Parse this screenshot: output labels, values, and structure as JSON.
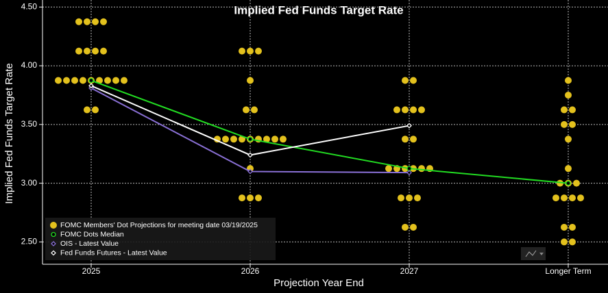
{
  "chart_data": {
    "type": "scatter",
    "title": "Implied Fed Funds Target Rate",
    "ylabel": "Implied Fed Funds Target Rate",
    "xlabel": "Projection Year End",
    "categories": [
      "2025",
      "2026",
      "2027",
      "Longer Term"
    ],
    "ylim": [
      2.31,
      4.56
    ],
    "yticks": [
      {
        "value": 2.5,
        "label": "2.50"
      },
      {
        "value": 3.0,
        "label": "3.00"
      },
      {
        "value": 3.5,
        "label": "3.50"
      },
      {
        "value": 4.0,
        "label": "4.00"
      },
      {
        "value": 4.5,
        "label": "4.50"
      }
    ],
    "grid": true,
    "legend": "lower left",
    "series": [
      {
        "name": "FOMC Members' Dot Projections for meeting date 03/19/2025",
        "color": "#e3c11d",
        "kind": "dots",
        "values": [
          [
            4.375,
            4.375,
            4.375,
            4.375,
            4.125,
            4.125,
            4.125,
            4.125,
            3.875,
            3.875,
            3.875,
            3.875,
            3.875,
            3.875,
            3.875,
            3.875,
            3.875,
            3.625,
            3.625
          ],
          [
            4.125,
            4.125,
            4.125,
            3.875,
            3.625,
            3.625,
            3.375,
            3.375,
            3.375,
            3.375,
            3.375,
            3.375,
            3.375,
            3.375,
            3.375,
            3.125,
            2.875,
            2.875,
            2.875
          ],
          [
            3.875,
            3.875,
            3.625,
            3.625,
            3.625,
            3.625,
            3.375,
            3.375,
            3.125,
            3.125,
            3.125,
            3.125,
            3.125,
            3.125,
            2.875,
            2.875,
            2.875,
            2.625,
            2.625
          ],
          [
            3.875,
            3.75,
            3.625,
            3.625,
            3.5,
            3.5,
            3.375,
            3.125,
            3.0,
            3.0,
            3.0,
            2.875,
            2.875,
            2.875,
            2.875,
            2.625,
            2.625,
            2.5,
            2.5
          ]
        ]
      },
      {
        "name": "FOMC Dots Median",
        "color": "#22dd22",
        "kind": "line",
        "marker": "circle",
        "values": [
          3.875,
          3.375,
          3.125,
          3.0
        ]
      },
      {
        "name": "OIS - Latest Value",
        "color": "#8a70d6",
        "kind": "line",
        "marker": "diamond",
        "values": [
          3.81,
          3.1,
          3.09,
          null
        ]
      },
      {
        "name": "Fed Funds Futures - Latest Value",
        "color": "#ffffff",
        "kind": "line",
        "marker": "diamond",
        "values": [
          3.83,
          3.24,
          3.49,
          null
        ]
      }
    ]
  }
}
